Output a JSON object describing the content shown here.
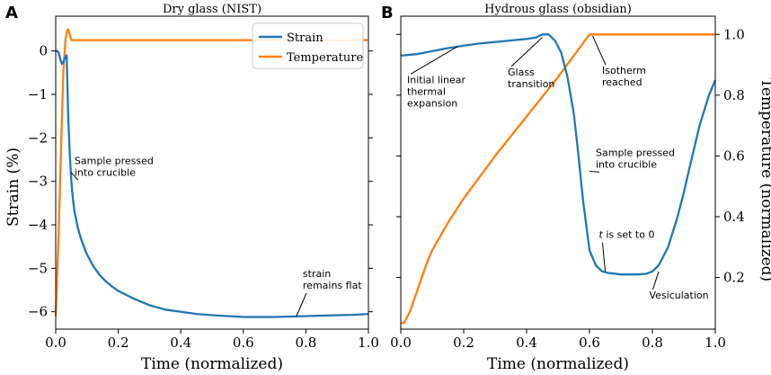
{
  "colors": {
    "strain": "#1f77b4",
    "temperature": "#ff7f0e",
    "axis": "#000000",
    "legend_border": "#cccccc"
  },
  "chart_data": [
    {
      "panel_label": "A",
      "type": "line",
      "title": "Dry glass (NIST)",
      "xlabel": "Time (normalized)",
      "ylabel": "Strain (%)",
      "xlim": [
        0,
        1
      ],
      "ylim": [
        -6.4,
        0.8
      ],
      "xticks": [
        0,
        0.2,
        0.4,
        0.6,
        0.8,
        1.0
      ],
      "xtick_labels": [
        "0.0",
        "0.2",
        "0.4",
        "0.6",
        "0.8",
        "1.0"
      ],
      "yticks": [
        0,
        -1,
        -2,
        -3,
        -4,
        -5,
        -6
      ],
      "ytick_labels": [
        "0",
        "−1",
        "−2",
        "−3",
        "−4",
        "−5",
        "−6"
      ],
      "legend": {
        "position": "top-right",
        "entries": [
          "Strain",
          "Temperature"
        ]
      },
      "series": [
        {
          "name": "Strain",
          "x": [
            0,
            0.005,
            0.01,
            0.015,
            0.02,
            0.025,
            0.03,
            0.035,
            0.04,
            0.045,
            0.05,
            0.055,
            0.06,
            0.07,
            0.08,
            0.09,
            0.1,
            0.12,
            0.14,
            0.16,
            0.18,
            0.2,
            0.25,
            0.3,
            0.35,
            0.4,
            0.45,
            0.5,
            0.55,
            0.6,
            0.65,
            0.7,
            0.75,
            0.8,
            0.85,
            0.9,
            0.95,
            1.0
          ],
          "y": [
            0,
            0,
            -0.05,
            -0.2,
            -0.3,
            -0.25,
            -0.15,
            -0.1,
            -1.5,
            -2.4,
            -3.0,
            -3.4,
            -3.7,
            -4.05,
            -4.3,
            -4.5,
            -4.68,
            -4.95,
            -5.15,
            -5.3,
            -5.42,
            -5.52,
            -5.7,
            -5.85,
            -5.95,
            -6.0,
            -6.05,
            -6.08,
            -6.1,
            -6.12,
            -6.12,
            -6.12,
            -6.11,
            -6.1,
            -6.09,
            -6.08,
            -6.07,
            -6.05
          ]
        },
        {
          "name": "Temperature",
          "x": [
            0,
            0.008,
            0.016,
            0.024,
            0.032,
            0.036,
            0.04,
            0.044,
            0.05,
            0.06,
            0.1,
            0.3,
            0.5,
            0.7,
            0.9,
            1.0
          ],
          "y": [
            -6.1,
            -4.5,
            -2.5,
            -0.5,
            0.3,
            0.45,
            0.5,
            0.4,
            0.25,
            0.25,
            0.25,
            0.25,
            0.25,
            0.25,
            0.25,
            0.25
          ]
        }
      ],
      "annotations": [
        {
          "text": [
            "Sample pressed",
            "into crucible"
          ],
          "x": 0.06,
          "y": -2.6,
          "point_x": 0.05,
          "point_y": -2.8
        },
        {
          "text": [
            "strain",
            "remains flat"
          ],
          "x": 0.79,
          "y": -5.2,
          "point_x": 0.77,
          "point_y": -6.1
        }
      ]
    },
    {
      "panel_label": "B",
      "type": "line",
      "title": "Hydrous glass (obsidian)",
      "xlabel": "Time (normalized)",
      "ylabel": "Temperature (normalized)",
      "xlim": [
        0,
        1
      ],
      "ylim": [
        0.03,
        1.06
      ],
      "xticks": [
        0,
        0.2,
        0.4,
        0.6,
        0.8,
        1.0
      ],
      "xtick_labels": [
        "0.0",
        "0.2",
        "0.4",
        "0.6",
        "0.8",
        "1.0"
      ],
      "yticks": [
        0.2,
        0.4,
        0.6,
        0.8,
        1.0
      ],
      "ytick_labels": [
        "0.2",
        "0.4",
        "0.6",
        "0.8",
        "1.0"
      ],
      "series": [
        {
          "name": "Strain",
          "x": [
            0,
            0.05,
            0.1,
            0.15,
            0.2,
            0.25,
            0.3,
            0.35,
            0.4,
            0.43,
            0.45,
            0.47,
            0.49,
            0.51,
            0.53,
            0.55,
            0.56,
            0.57,
            0.58,
            0.59,
            0.6,
            0.62,
            0.64,
            0.66,
            0.7,
            0.75,
            0.78,
            0.8,
            0.82,
            0.85,
            0.88,
            0.9,
            0.92,
            0.95,
            0.98,
            1.0
          ],
          "y": [
            0.93,
            0.935,
            0.945,
            0.955,
            0.963,
            0.97,
            0.975,
            0.98,
            0.985,
            0.99,
            1.0,
            1.0,
            0.98,
            0.94,
            0.86,
            0.74,
            0.65,
            0.55,
            0.45,
            0.37,
            0.29,
            0.24,
            0.22,
            0.215,
            0.21,
            0.21,
            0.212,
            0.22,
            0.24,
            0.3,
            0.4,
            0.48,
            0.57,
            0.7,
            0.8,
            0.85
          ]
        },
        {
          "name": "Temperature",
          "x": [
            0,
            0.01,
            0.02,
            0.03,
            0.04,
            0.06,
            0.08,
            0.1,
            0.15,
            0.2,
            0.3,
            0.4,
            0.5,
            0.55,
            0.6,
            0.61,
            0.7,
            0.8,
            0.9,
            1.0
          ],
          "y": [
            0.05,
            0.05,
            0.07,
            0.09,
            0.12,
            0.18,
            0.24,
            0.29,
            0.38,
            0.46,
            0.6,
            0.73,
            0.86,
            0.93,
            1.0,
            1.0,
            1.0,
            1.0,
            1.0,
            1.0
          ]
        }
      ],
      "annotations": [
        {
          "text": [
            "Initial linear",
            "thermal",
            "expansion"
          ],
          "x": 0.02,
          "y": 0.84,
          "point_x": 0.18,
          "point_y": 0.96
        },
        {
          "text": [
            "Glass",
            "transition"
          ],
          "x": 0.34,
          "y": 0.865,
          "point_x": 0.45,
          "point_y": 0.99
        },
        {
          "text": [
            "Isotherm",
            "reached"
          ],
          "x": 0.64,
          "y": 0.87,
          "point_x": 0.61,
          "point_y": 0.995
        },
        {
          "text": [
            "Sample pressed",
            "into crucible"
          ],
          "x": 0.62,
          "y": 0.6,
          "point_x": 0.6,
          "point_y": 0.55
        },
        {
          "text": [
            "$t is set to 0"
          ],
          "x": 0.63,
          "y": 0.33,
          "point_x": 0.65,
          "point_y": 0.22
        },
        {
          "text": [
            "Vesiculation"
          ],
          "x": 0.79,
          "y": 0.13,
          "point_x": 0.82,
          "point_y": 0.22
        }
      ]
    }
  ]
}
